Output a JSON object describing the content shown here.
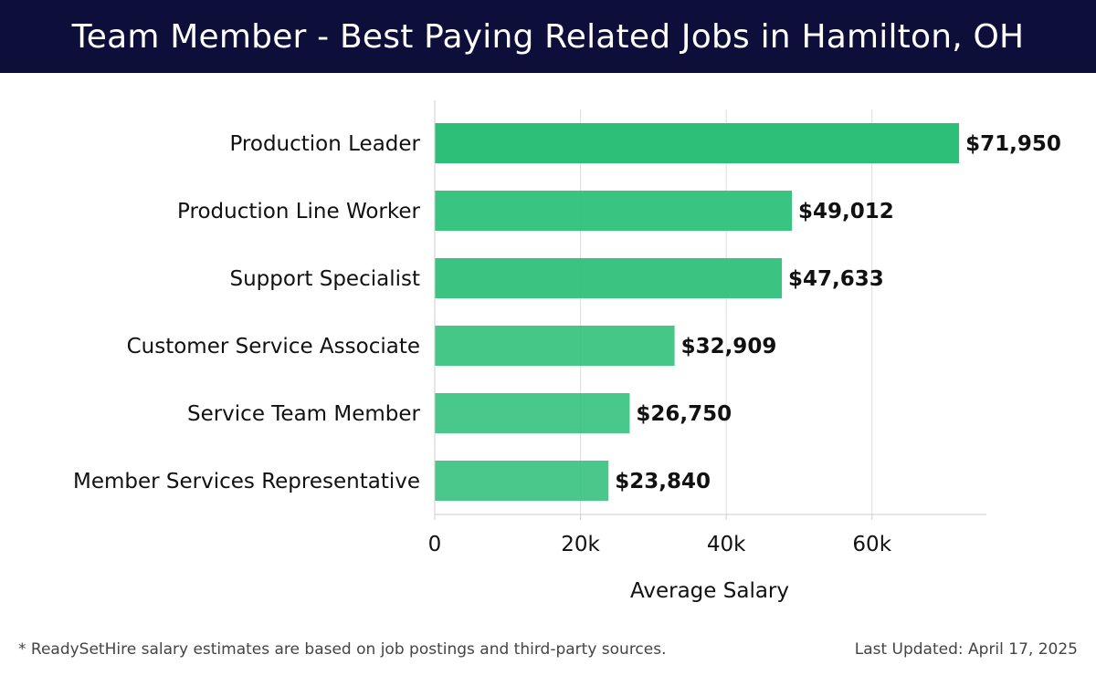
{
  "header": {
    "title": "Team Member - Best Paying Related Jobs in Hamilton, OH"
  },
  "footer": {
    "note": "* ReadySetHire salary estimates are based on job postings and third-party sources.",
    "updated": "Last Updated: April 17, 2025"
  },
  "chart_data": {
    "type": "bar",
    "orientation": "horizontal",
    "categories": [
      "Production Leader",
      "Production Line Worker",
      "Support Specialist",
      "Customer Service Associate",
      "Service Team Member",
      "Member Services Representative"
    ],
    "values": [
      71950,
      49012,
      47633,
      32909,
      26750,
      23840
    ],
    "value_labels": [
      "$71,950",
      "$49,012",
      "$47,633",
      "$32,909",
      "$26,750",
      "$23,840"
    ],
    "xlabel": "Average Salary",
    "ylabel": "",
    "xlim": [
      0,
      75700
    ],
    "xticks": [
      0,
      20000,
      40000,
      60000
    ],
    "xtick_labels": [
      "0",
      "20k",
      "40k",
      "60k"
    ],
    "grid": true,
    "colors": {
      "bar": "#2bbf77",
      "grid": "#dddddd",
      "axis": "#cccccc"
    }
  }
}
